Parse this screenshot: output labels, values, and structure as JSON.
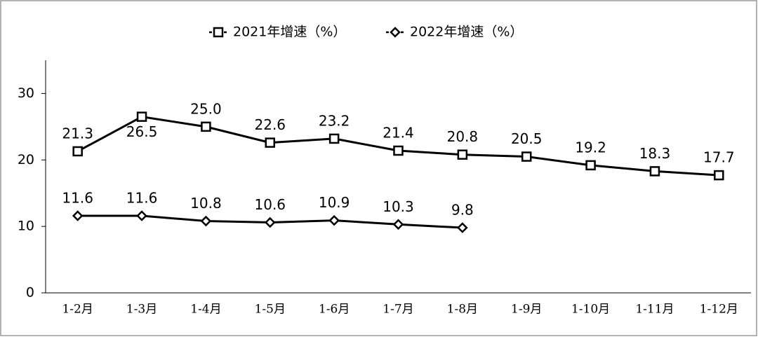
{
  "chart_data": {
    "type": "line",
    "categories": [
      "1-2月",
      "1-3月",
      "1-4月",
      "1-5月",
      "1-6月",
      "1-7月",
      "1-8月",
      "1-9月",
      "1-10月",
      "1-11月",
      "1-12月"
    ],
    "series": [
      {
        "name": "2021年增速（%）",
        "color": "#000000",
        "marker": "square",
        "values": [
          21.3,
          26.5,
          25.0,
          22.6,
          23.2,
          21.4,
          20.8,
          20.5,
          19.2,
          18.3,
          17.7
        ],
        "value_labels": [
          "21.3",
          "26.5",
          "25.0",
          "22.6",
          "23.2",
          "21.4",
          "20.8",
          "20.5",
          "19.2",
          "18.3",
          "17.7"
        ]
      },
      {
        "name": "2022年增速（%）",
        "color": "#000000",
        "marker": "diamond",
        "values": [
          11.6,
          11.6,
          10.8,
          10.6,
          10.9,
          10.3,
          9.8,
          null,
          null,
          null,
          null
        ],
        "value_labels": [
          "11.6",
          "11.6",
          "10.8",
          "10.6",
          "10.9",
          "10.3",
          "9.8",
          null,
          null,
          null,
          null
        ]
      }
    ],
    "ylim": [
      0,
      35
    ],
    "yticks": [
      0,
      10,
      20,
      30
    ],
    "legend": "top"
  }
}
